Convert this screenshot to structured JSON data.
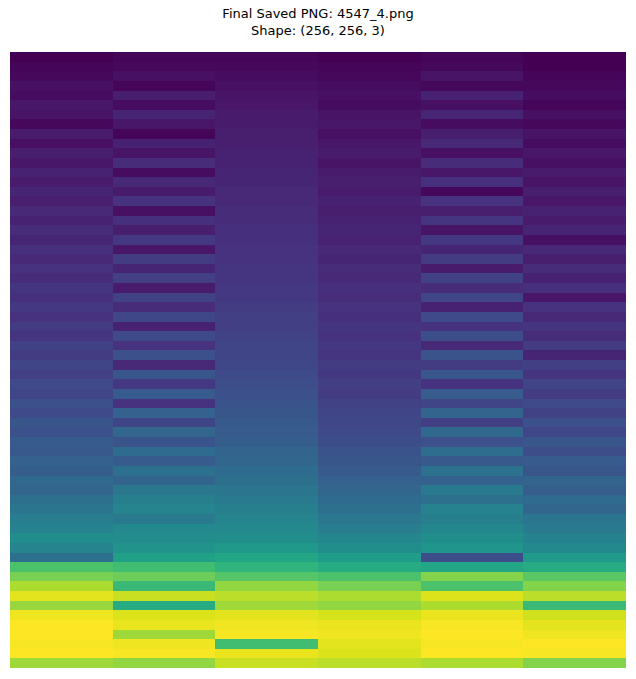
{
  "chart_data": {
    "type": "heatmap",
    "title": "Final Saved PNG: 4547_4.png\nShape: (256, 256, 3)",
    "tick_labels": false,
    "z": [
      [
        0.02,
        0.03,
        0.03,
        0.02,
        0.03,
        0.02
      ],
      [
        0.03,
        0.04,
        0.04,
        0.03,
        0.04,
        0.02
      ],
      [
        0.04,
        0.06,
        0.05,
        0.04,
        0.07,
        0.03
      ],
      [
        0.06,
        0.03,
        0.06,
        0.05,
        0.04,
        0.04
      ],
      [
        0.05,
        0.1,
        0.07,
        0.06,
        0.11,
        0.05
      ],
      [
        0.08,
        0.05,
        0.08,
        0.05,
        0.06,
        0.03
      ],
      [
        0.07,
        0.12,
        0.09,
        0.07,
        0.12,
        0.06
      ],
      [
        0.04,
        0.08,
        0.09,
        0.08,
        0.05,
        0.04
      ],
      [
        0.09,
        0.03,
        0.1,
        0.06,
        0.1,
        0.07
      ],
      [
        0.06,
        0.11,
        0.1,
        0.08,
        0.13,
        0.05
      ],
      [
        0.1,
        0.07,
        0.11,
        0.09,
        0.06,
        0.08
      ],
      [
        0.08,
        0.14,
        0.11,
        0.07,
        0.14,
        0.06
      ],
      [
        0.11,
        0.05,
        0.12,
        0.09,
        0.08,
        0.09
      ],
      [
        0.09,
        0.13,
        0.12,
        0.1,
        0.15,
        0.07
      ],
      [
        0.12,
        0.09,
        0.13,
        0.09,
        0.04,
        0.1
      ],
      [
        0.1,
        0.16,
        0.13,
        0.11,
        0.16,
        0.08
      ],
      [
        0.13,
        0.06,
        0.14,
        0.1,
        0.1,
        0.11
      ],
      [
        0.11,
        0.15,
        0.14,
        0.11,
        0.17,
        0.09
      ],
      [
        0.14,
        0.1,
        0.15,
        0.12,
        0.07,
        0.12
      ],
      [
        0.12,
        0.18,
        0.15,
        0.11,
        0.18,
        0.06
      ],
      [
        0.15,
        0.08,
        0.16,
        0.13,
        0.12,
        0.13
      ],
      [
        0.13,
        0.19,
        0.16,
        0.12,
        0.19,
        0.1
      ],
      [
        0.16,
        0.12,
        0.17,
        0.14,
        0.09,
        0.14
      ],
      [
        0.14,
        0.2,
        0.17,
        0.13,
        0.21,
        0.11
      ],
      [
        0.17,
        0.09,
        0.18,
        0.15,
        0.14,
        0.15
      ],
      [
        0.15,
        0.21,
        0.18,
        0.14,
        0.22,
        0.08
      ],
      [
        0.18,
        0.14,
        0.19,
        0.16,
        0.11,
        0.16
      ],
      [
        0.16,
        0.23,
        0.2,
        0.15,
        0.24,
        0.13
      ],
      [
        0.19,
        0.11,
        0.2,
        0.17,
        0.16,
        0.17
      ],
      [
        0.17,
        0.24,
        0.21,
        0.16,
        0.25,
        0.14
      ],
      [
        0.21,
        0.16,
        0.22,
        0.18,
        0.13,
        0.19
      ],
      [
        0.19,
        0.26,
        0.22,
        0.17,
        0.27,
        0.12
      ],
      [
        0.22,
        0.13,
        0.23,
        0.19,
        0.19,
        0.2
      ],
      [
        0.2,
        0.28,
        0.24,
        0.18,
        0.28,
        0.17
      ],
      [
        0.24,
        0.18,
        0.25,
        0.2,
        0.16,
        0.22
      ],
      [
        0.22,
        0.3,
        0.26,
        0.19,
        0.3,
        0.19
      ],
      [
        0.26,
        0.16,
        0.27,
        0.21,
        0.22,
        0.24
      ],
      [
        0.24,
        0.32,
        0.28,
        0.22,
        0.33,
        0.21
      ],
      [
        0.28,
        0.22,
        0.29,
        0.23,
        0.2,
        0.26
      ],
      [
        0.26,
        0.34,
        0.3,
        0.24,
        0.35,
        0.23
      ],
      [
        0.3,
        0.27,
        0.31,
        0.25,
        0.26,
        0.28
      ],
      [
        0.29,
        0.36,
        0.33,
        0.27,
        0.37,
        0.25
      ],
      [
        0.32,
        0.3,
        0.34,
        0.28,
        0.29,
        0.3
      ],
      [
        0.31,
        0.38,
        0.36,
        0.3,
        0.39,
        0.28
      ],
      [
        0.35,
        0.33,
        0.38,
        0.32,
        0.32,
        0.33
      ],
      [
        0.34,
        0.41,
        0.4,
        0.34,
        0.42,
        0.31
      ],
      [
        0.38,
        0.44,
        0.42,
        0.36,
        0.38,
        0.36
      ],
      [
        0.4,
        0.46,
        0.44,
        0.38,
        0.45,
        0.34
      ],
      [
        0.43,
        0.42,
        0.46,
        0.41,
        0.44,
        0.4
      ],
      [
        0.45,
        0.48,
        0.48,
        0.43,
        0.47,
        0.42
      ],
      [
        0.5,
        0.49,
        0.5,
        0.47,
        0.5,
        0.45
      ],
      [
        0.46,
        0.52,
        0.54,
        0.5,
        0.53,
        0.48
      ],
      [
        0.38,
        0.58,
        0.6,
        0.56,
        0.25,
        0.55
      ],
      [
        0.72,
        0.7,
        0.66,
        0.62,
        0.6,
        0.62
      ],
      [
        0.8,
        0.78,
        0.74,
        0.72,
        0.82,
        0.75
      ],
      [
        0.88,
        0.68,
        0.84,
        0.8,
        0.72,
        0.82
      ],
      [
        0.96,
        0.92,
        0.9,
        0.88,
        0.95,
        0.9
      ],
      [
        0.85,
        0.62,
        0.86,
        0.84,
        0.88,
        0.68
      ],
      [
        0.98,
        0.95,
        0.96,
        0.94,
        0.97,
        0.93
      ],
      [
        1.0,
        0.97,
        0.98,
        0.97,
        0.99,
        0.96
      ],
      [
        1.0,
        0.86,
        0.99,
        0.98,
        1.0,
        0.98
      ],
      [
        0.99,
        0.98,
        0.7,
        0.96,
        0.99,
        1.0
      ],
      [
        1.0,
        0.99,
        0.97,
        0.95,
        1.0,
        0.99
      ],
      [
        0.86,
        0.84,
        0.92,
        0.9,
        0.88,
        0.82
      ]
    ]
  }
}
